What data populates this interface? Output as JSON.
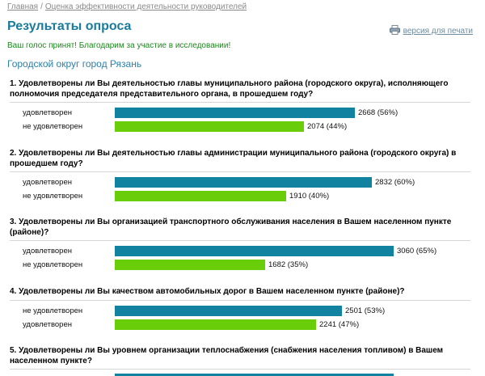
{
  "breadcrumb": {
    "home": "Главная",
    "sep": "/",
    "current": "Оценка эффективности деятельности руководителей"
  },
  "page": {
    "title": "Результаты опроса",
    "print_label": "версия для печати",
    "confirm": "Ваш голос принят! Благодарим за участие в исследовании!",
    "region": "Городской округ город Рязань"
  },
  "colors": {
    "yes": "#11829f",
    "no": "#6acd0a",
    "title": "#1a7b9e"
  },
  "questions": [
    {
      "num": "1.",
      "text": "Удовлетворены ли Вы деятельностью главы муниципального района (городского округа), исполняющего полномочия председателя представительного органа, в прошедшем году?",
      "answers": [
        {
          "label": "удовлетворен",
          "value": "2668 (56%)",
          "share": 0.56,
          "color": "blue"
        },
        {
          "label": "не удовлетворен",
          "value": "2074 (44%)",
          "share": 0.44,
          "color": "green"
        }
      ]
    },
    {
      "num": "2.",
      "text": "Удовлетворены ли Вы деятельностью главы администрации муниципального района (городского округа) в прошедшем году?",
      "answers": [
        {
          "label": "удовлетворен",
          "value": "2832 (60%)",
          "share": 0.6,
          "color": "blue"
        },
        {
          "label": "не удовлетворен",
          "value": "1910 (40%)",
          "share": 0.4,
          "color": "green"
        }
      ]
    },
    {
      "num": "3.",
      "text": "Удовлетворены ли Вы организацией транспортного обслуживания населения в Вашем населенном пункте (районе)?",
      "answers": [
        {
          "label": "удовлетворен",
          "value": "3060 (65%)",
          "share": 0.65,
          "color": "blue"
        },
        {
          "label": "не удовлетворен",
          "value": "1682 (35%)",
          "share": 0.35,
          "color": "green"
        }
      ]
    },
    {
      "num": "4.",
      "text": "Удовлетворены ли Вы качеством автомобильных дорог в Вашем населенном пункте (районе)?",
      "answers": [
        {
          "label": "не удовлетворен",
          "value": "2501 (53%)",
          "share": 0.53,
          "color": "blue"
        },
        {
          "label": "удовлетворен",
          "value": "2241 (47%)",
          "share": 0.47,
          "color": "green"
        }
      ]
    },
    {
      "num": "5.",
      "text": "Удовлетворены ли Вы уровнем организации теплоснабжения (снабжения населения топливом) в Вашем населенном пункте?",
      "answers": []
    }
  ]
}
